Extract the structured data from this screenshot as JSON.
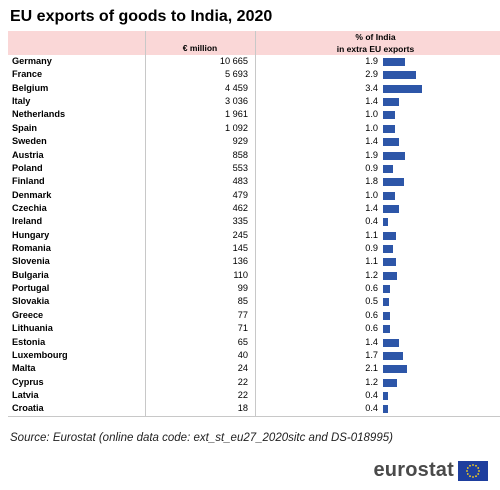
{
  "title": "EU exports of goods to India, 2020",
  "header": {
    "col_value": "€ million",
    "col_pct_line1": "% of India",
    "col_pct_line2": "in extra EU exports"
  },
  "chart_data": {
    "type": "table",
    "title": "EU exports of goods to India, 2020",
    "columns": [
      "",
      "€ million",
      "% of India in extra EU exports"
    ],
    "rows": [
      {
        "country": "Germany",
        "value": "10 665",
        "pct": "1.9"
      },
      {
        "country": "France",
        "value": "5 693",
        "pct": "2.9"
      },
      {
        "country": "Belgium",
        "value": "4 459",
        "pct": "3.4"
      },
      {
        "country": "Italy",
        "value": "3 036",
        "pct": "1.4"
      },
      {
        "country": "Netherlands",
        "value": "1 961",
        "pct": "1.0"
      },
      {
        "country": "Spain",
        "value": "1 092",
        "pct": "1.0"
      },
      {
        "country": "Sweden",
        "value": "929",
        "pct": "1.4"
      },
      {
        "country": "Austria",
        "value": "858",
        "pct": "1.9"
      },
      {
        "country": "Poland",
        "value": "553",
        "pct": "0.9"
      },
      {
        "country": "Finland",
        "value": "483",
        "pct": "1.8"
      },
      {
        "country": "Denmark",
        "value": "479",
        "pct": "1.0"
      },
      {
        "country": "Czechia",
        "value": "462",
        "pct": "1.4"
      },
      {
        "country": "Ireland",
        "value": "335",
        "pct": "0.4"
      },
      {
        "country": "Hungary",
        "value": "245",
        "pct": "1.1"
      },
      {
        "country": "Romania",
        "value": "145",
        "pct": "0.9"
      },
      {
        "country": "Slovenia",
        "value": "136",
        "pct": "1.1"
      },
      {
        "country": "Bulgaria",
        "value": "110",
        "pct": "1.2"
      },
      {
        "country": "Portugal",
        "value": "99",
        "pct": "0.6"
      },
      {
        "country": "Slovakia",
        "value": "85",
        "pct": "0.5"
      },
      {
        "country": "Greece",
        "value": "77",
        "pct": "0.6"
      },
      {
        "country": "Lithuania",
        "value": "71",
        "pct": "0.6"
      },
      {
        "country": "Estonia",
        "value": "65",
        "pct": "1.4"
      },
      {
        "country": "Luxembourg",
        "value": "40",
        "pct": "1.7"
      },
      {
        "country": "Malta",
        "value": "24",
        "pct": "2.1"
      },
      {
        "country": "Cyprus",
        "value": "22",
        "pct": "1.2"
      },
      {
        "country": "Latvia",
        "value": "22",
        "pct": "0.4"
      },
      {
        "country": "Croatia",
        "value": "18",
        "pct": "0.4"
      }
    ],
    "bar_color": "#2d56a8",
    "header_color": "#fad7d7"
  },
  "source": "Source: Eurostat (online data code: ext_st_eu27_2020sitc and DS-018995)",
  "logo": {
    "text": "eurostat",
    "icon": "eu-flag-icon"
  }
}
